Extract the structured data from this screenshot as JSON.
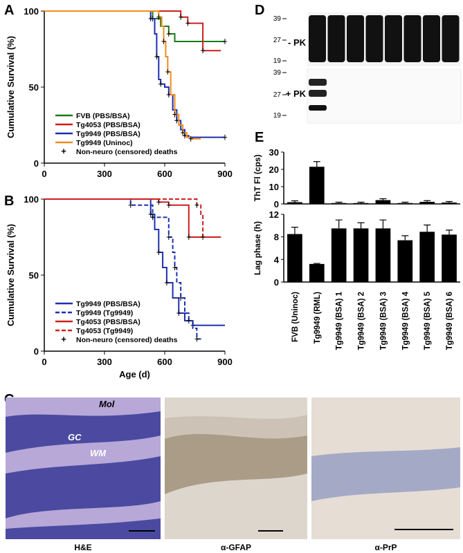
{
  "panels": {
    "A": "A",
    "B": "B",
    "C": "C",
    "D": "D",
    "E": "E"
  },
  "chart_data": [
    {
      "type": "line",
      "panel": "A",
      "ylabel": "Cumulative Survival (%)",
      "xlabel": "",
      "xlim": [
        0,
        900
      ],
      "ylim": [
        0,
        100
      ],
      "xticks": [
        "0",
        "300",
        "600",
        "900"
      ],
      "yticks": [
        "0",
        "50",
        "100"
      ],
      "series": [
        {
          "name": "FVB (PBS/BSA)",
          "color": "#1a7a1a",
          "dash": false,
          "points": [
            [
              0,
              100
            ],
            [
              510,
              100
            ],
            [
              540,
              95
            ],
            [
              580,
              90
            ],
            [
              620,
              85
            ],
            [
              650,
              80
            ],
            [
              900,
              80
            ]
          ]
        },
        {
          "name": "Tg4053 (PBS/BSA)",
          "color": "#cc1f1f",
          "dash": false,
          "points": [
            [
              0,
              100
            ],
            [
              660,
              100
            ],
            [
              680,
              96
            ],
            [
              700,
              96
            ],
            [
              715,
              92
            ],
            [
              780,
              92
            ],
            [
              790,
              74
            ],
            [
              880,
              74
            ]
          ]
        },
        {
          "name": "Tg9949 (PBS/BSA)",
          "color": "#1c2fb0",
          "dash": false,
          "points": [
            [
              0,
              100
            ],
            [
              510,
              100
            ],
            [
              530,
              95
            ],
            [
              550,
              85
            ],
            [
              560,
              70
            ],
            [
              570,
              55
            ],
            [
              580,
              52
            ],
            [
              600,
              50
            ],
            [
              620,
              45
            ],
            [
              640,
              35
            ],
            [
              660,
              28
            ],
            [
              680,
              22
            ],
            [
              700,
              18
            ],
            [
              720,
              17
            ],
            [
              900,
              17
            ]
          ]
        },
        {
          "name": "Tg9949 (Uninoc)",
          "color": "#f08c1e",
          "dash": false,
          "points": [
            [
              0,
              100
            ],
            [
              550,
              100
            ],
            [
              570,
              96
            ],
            [
              585,
              90
            ],
            [
              595,
              80
            ],
            [
              605,
              70
            ],
            [
              615,
              60
            ],
            [
              630,
              45
            ],
            [
              650,
              32
            ],
            [
              670,
              25
            ],
            [
              690,
              20
            ],
            [
              710,
              17
            ],
            [
              730,
              16
            ],
            [
              780,
              16
            ]
          ]
        }
      ],
      "legend": [
        "FVB (PBS/BSA)",
        "Tg4053 (PBS/BSA)",
        "Tg9949 (PBS/BSA)",
        "Tg9949 (Uninoc)",
        "Non-neuro (censored) deaths"
      ],
      "legend_position": "bottom-left"
    },
    {
      "type": "line",
      "panel": "B",
      "ylabel": "Cumulative Survival (%)",
      "xlabel": "Age (d)",
      "xlim": [
        0,
        900
      ],
      "ylim": [
        0,
        100
      ],
      "xticks": [
        "0",
        "300",
        "600",
        "900"
      ],
      "yticks": [
        "0",
        "50",
        "100"
      ],
      "series": [
        {
          "name": "Tg9949 (PBS/BSA)",
          "color": "#1c2fb0",
          "dash": false,
          "points": [
            [
              0,
              100
            ],
            [
              500,
              100
            ],
            [
              530,
              90
            ],
            [
              550,
              80
            ],
            [
              570,
              65
            ],
            [
              590,
              55
            ],
            [
              610,
              45
            ],
            [
              640,
              35
            ],
            [
              670,
              25
            ],
            [
              700,
              20
            ],
            [
              740,
              17
            ],
            [
              900,
              17
            ]
          ]
        },
        {
          "name": "Tg9949 (Tg9949)",
          "color": "#1c2fb0",
          "dash": true,
          "points": [
            [
              0,
              100
            ],
            [
              420,
              100
            ],
            [
              430,
              96
            ],
            [
              520,
              96
            ],
            [
              540,
              88
            ],
            [
              600,
              88
            ],
            [
              620,
              75
            ],
            [
              640,
              65
            ],
            [
              650,
              55
            ],
            [
              660,
              45
            ],
            [
              680,
              35
            ],
            [
              700,
              25
            ],
            [
              720,
              20
            ],
            [
              740,
              15
            ],
            [
              760,
              8
            ],
            [
              790,
              8
            ]
          ]
        },
        {
          "name": "Tg4053 (PBS/BSA)",
          "color": "#cc1f1f",
          "dash": false,
          "points": [
            [
              0,
              100
            ],
            [
              550,
              100
            ],
            [
              570,
              98
            ],
            [
              600,
              98
            ],
            [
              620,
              96
            ],
            [
              700,
              96
            ],
            [
              720,
              75
            ],
            [
              880,
              75
            ]
          ]
        },
        {
          "name": "Tg4053 (Tg9949)",
          "color": "#cc1f1f",
          "dash": true,
          "points": [
            [
              0,
              100
            ],
            [
              740,
              100
            ],
            [
              760,
              96
            ],
            [
              780,
              90
            ],
            [
              790,
              75
            ],
            [
              880,
              75
            ]
          ]
        }
      ],
      "legend": [
        "Tg9949 (PBS/BSA)",
        "Tg9949 (Tg9949)",
        "Tg4053 (PBS/BSA)",
        "Tg4053 (Tg9949)",
        "Non-neuro (censored) deaths"
      ],
      "legend_position": "bottom-left"
    },
    {
      "type": "bar",
      "panel": "E-top",
      "ylabel": "ThT Fl (cps)",
      "xlabel": "",
      "ylim": [
        0,
        30
      ],
      "yticks": [
        "0",
        "10",
        "20",
        "30"
      ],
      "categories": [
        "FVB (Uninoc)",
        "Tg9949 (RML)",
        "Tg9949 (BSA) 1",
        "Tg9949 (BSA) 2",
        "Tg9949 (BSA) 3",
        "Tg9949 (BSA) 4",
        "Tg9949 (BSA) 5",
        "Tg9949 (BSA) 6"
      ],
      "values": [
        1.0,
        21.5,
        0.5,
        0.5,
        2.2,
        0.5,
        1.2,
        0.8
      ],
      "errors": [
        0.8,
        3.0,
        0.5,
        0.5,
        0.8,
        0.5,
        0.7,
        0.6
      ]
    },
    {
      "type": "bar",
      "panel": "E-bottom",
      "ylabel": "Lag phase (h)",
      "xlabel": "",
      "ylim": [
        0,
        12
      ],
      "yticks": [
        "0",
        "4",
        "8",
        "12"
      ],
      "categories": [
        "FVB (Uninoc)",
        "Tg9949 (RML)",
        "Tg9949 (BSA) 1",
        "Tg9949 (BSA) 2",
        "Tg9949 (BSA) 3",
        "Tg9949 (BSA) 4",
        "Tg9949 (BSA) 5",
        "Tg9949 (BSA) 6"
      ],
      "values": [
        8.5,
        3.2,
        9.5,
        9.5,
        9.5,
        7.4,
        8.9,
        8.4
      ],
      "errors": [
        1.2,
        0.1,
        1.5,
        1.0,
        1.5,
        0.8,
        1.2,
        0.8
      ]
    }
  ],
  "blot": {
    "markers_top": [
      "39",
      "27",
      "19"
    ],
    "markers_bottom": [
      "39",
      "27",
      "19"
    ],
    "label_top": "- PK",
    "label_bottom": "+ PK"
  },
  "histology": {
    "captions": [
      "H&E",
      "α-GFAP",
      "α-PrP"
    ],
    "labels": [
      "Mol",
      "GC",
      "WM"
    ],
    "colors": {
      "he_bg": "#b7a8d8",
      "he_gc": "#4b4aa0",
      "gfap_bg": "#ddd6cc",
      "gfap_band": "#9a8870",
      "prp_bg": "#e6ddd4",
      "prp_band": "#8894c0"
    }
  }
}
